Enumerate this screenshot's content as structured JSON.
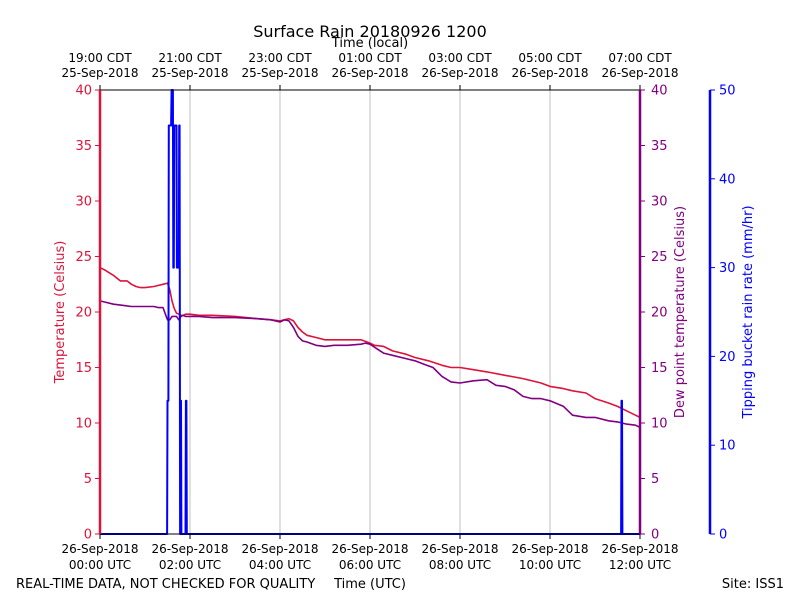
{
  "chart_data": {
    "type": "line",
    "title": "Surface Rain 20180926 1200",
    "top_xlabel": "Time (local)",
    "xlabel": "Time (UTC)",
    "ylabel_left": "Temperature (Celsius)",
    "ylabel_right1": "Dew point temperature (Celsius)",
    "ylabel_right2": "Tipping bucket rain rate (mm/hr)",
    "footer_left": "REAL-TIME DATA, NOT CHECKED FOR QUALITY",
    "footer_right": "Site: ISS1",
    "xlim": [
      0,
      12
    ],
    "ylim_temp": [
      0,
      40
    ],
    "ylim_rain": [
      0,
      50
    ],
    "temp_ticks": [
      0,
      5,
      10,
      15,
      20,
      25,
      30,
      35,
      40
    ],
    "rain_ticks": [
      0,
      10,
      20,
      30,
      40,
      50
    ],
    "x_ticks_bottom": [
      {
        "x": 0,
        "line1": "26-Sep-2018",
        "line2": "00:00 UTC"
      },
      {
        "x": 2,
        "line1": "26-Sep-2018",
        "line2": "02:00 UTC"
      },
      {
        "x": 4,
        "line1": "26-Sep-2018",
        "line2": "04:00 UTC"
      },
      {
        "x": 6,
        "line1": "26-Sep-2018",
        "line2": "06:00 UTC"
      },
      {
        "x": 8,
        "line1": "26-Sep-2018",
        "line2": "08:00 UTC"
      },
      {
        "x": 10,
        "line1": "26-Sep-2018",
        "line2": "10:00 UTC"
      },
      {
        "x": 12,
        "line1": "26-Sep-2018",
        "line2": "12:00 UTC"
      }
    ],
    "x_ticks_top": [
      {
        "x": 0,
        "line1": "19:00 CDT",
        "line2": "25-Sep-2018"
      },
      {
        "x": 2,
        "line1": "21:00 CDT",
        "line2": "25-Sep-2018"
      },
      {
        "x": 4,
        "line1": "23:00 CDT",
        "line2": "25-Sep-2018"
      },
      {
        "x": 6,
        "line1": "01:00 CDT",
        "line2": "26-Sep-2018"
      },
      {
        "x": 8,
        "line1": "03:00 CDT",
        "line2": "26-Sep-2018"
      },
      {
        "x": 10,
        "line1": "05:00 CDT",
        "line2": "26-Sep-2018"
      },
      {
        "x": 12,
        "line1": "07:00 CDT",
        "line2": "26-Sep-2018"
      }
    ],
    "colors": {
      "temperature": "#dc143c",
      "dewpoint": "#800080",
      "rain": "#0000ff",
      "grid": "#b0b0b0",
      "axis": "#000000"
    },
    "series": [
      {
        "name": "Temperature",
        "axis": "temp",
        "x": [
          0,
          0.1,
          0.3,
          0.45,
          0.6,
          0.7,
          0.8,
          0.9,
          1.0,
          1.2,
          1.3,
          1.4,
          1.5,
          1.55,
          1.6,
          1.65,
          1.7,
          1.75,
          1.8,
          1.85,
          1.9,
          2.0,
          2.2,
          2.5,
          3.0,
          3.5,
          3.8,
          4.0,
          4.1,
          4.2,
          4.3,
          4.4,
          4.5,
          4.6,
          4.8,
          5.0,
          5.2,
          5.5,
          5.8,
          6.0,
          6.1,
          6.3,
          6.5,
          6.8,
          7.0,
          7.3,
          7.6,
          7.8,
          8.0,
          8.3,
          8.6,
          9.0,
          9.4,
          9.8,
          10.0,
          10.3,
          10.5,
          10.8,
          11.0,
          11.3,
          11.5,
          11.7,
          11.9,
          12.0
        ],
        "values": [
          24.0,
          23.8,
          23.3,
          22.8,
          22.8,
          22.5,
          22.3,
          22.2,
          22.2,
          22.3,
          22.4,
          22.5,
          22.6,
          22.0,
          21.0,
          20.3,
          19.9,
          19.8,
          19.7,
          19.7,
          19.8,
          19.8,
          19.7,
          19.7,
          19.6,
          19.4,
          19.3,
          19.2,
          19.3,
          19.4,
          19.2,
          18.6,
          18.2,
          17.9,
          17.7,
          17.5,
          17.5,
          17.5,
          17.5,
          17.2,
          17.0,
          16.9,
          16.5,
          16.2,
          15.9,
          15.6,
          15.2,
          15.0,
          15.0,
          14.8,
          14.6,
          14.3,
          14.0,
          13.6,
          13.3,
          13.1,
          12.9,
          12.7,
          12.2,
          11.8,
          11.5,
          11.1,
          10.7,
          10.5
        ]
      },
      {
        "name": "Dew point",
        "axis": "temp",
        "x": [
          0,
          0.1,
          0.3,
          0.5,
          0.7,
          0.9,
          1.0,
          1.2,
          1.3,
          1.4,
          1.5,
          1.55,
          1.6,
          1.7,
          1.75,
          1.8,
          1.85,
          1.9,
          2.0,
          2.2,
          2.5,
          3.0,
          3.5,
          3.8,
          4.0,
          4.1,
          4.2,
          4.3,
          4.4,
          4.5,
          4.6,
          4.8,
          5.0,
          5.2,
          5.5,
          5.8,
          5.9,
          6.0,
          6.3,
          6.5,
          6.8,
          7.0,
          7.2,
          7.4,
          7.6,
          7.8,
          8.0,
          8.3,
          8.6,
          8.8,
          9.0,
          9.2,
          9.4,
          9.6,
          9.8,
          10.0,
          10.3,
          10.5,
          10.8,
          11.0,
          11.3,
          11.5,
          11.7,
          11.9,
          12.0
        ],
        "values": [
          21.0,
          20.9,
          20.7,
          20.6,
          20.5,
          20.5,
          20.5,
          20.5,
          20.4,
          20.4,
          19.3,
          19.3,
          19.6,
          19.6,
          19.3,
          19.6,
          19.7,
          19.6,
          19.6,
          19.6,
          19.5,
          19.5,
          19.4,
          19.3,
          19.1,
          19.3,
          19.2,
          18.6,
          17.8,
          17.4,
          17.3,
          17.0,
          16.9,
          17.0,
          17.0,
          17.1,
          17.2,
          17.1,
          16.3,
          16.1,
          15.8,
          15.6,
          15.3,
          15.0,
          14.2,
          13.7,
          13.6,
          13.8,
          13.9,
          13.4,
          13.3,
          13.0,
          12.4,
          12.2,
          12.2,
          12.0,
          11.5,
          10.7,
          10.5,
          10.5,
          10.2,
          10.1,
          9.9,
          9.8,
          9.6
        ]
      },
      {
        "name": "Rain rate",
        "axis": "rain",
        "x": [
          0,
          1.49,
          1.5,
          1.52,
          1.53,
          1.58,
          1.59,
          1.62,
          1.63,
          1.64,
          1.65,
          1.66,
          1.67,
          1.7,
          1.71,
          1.75,
          1.76,
          1.77,
          1.78,
          1.79,
          1.8,
          1.81,
          1.9,
          1.91,
          1.92,
          1.93,
          11.58,
          11.59,
          11.6,
          11.61,
          12.0
        ],
        "values": [
          0,
          0,
          15,
          15,
          46,
          46,
          50,
          50,
          30,
          30,
          46,
          46,
          46,
          46,
          30,
          30,
          46,
          46,
          0,
          15,
          15,
          0,
          0,
          15,
          15,
          0,
          0,
          15,
          15,
          0,
          0
        ]
      }
    ]
  }
}
